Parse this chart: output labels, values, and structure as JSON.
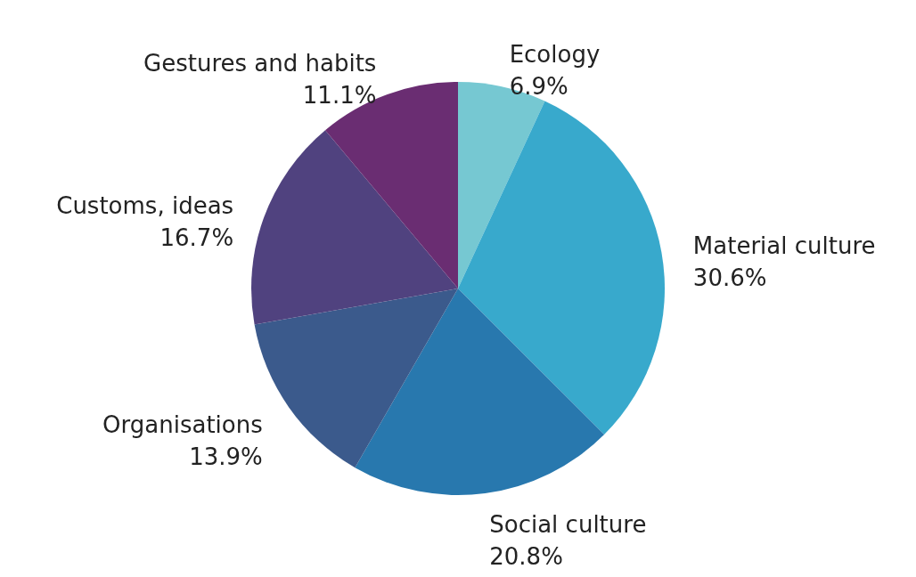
{
  "chart_data": {
    "type": "pie",
    "categories": [
      "Ecology",
      "Material culture",
      "Social culture",
      "Organisations",
      "Customs, ideas",
      "Gestures and habits"
    ],
    "values": [
      6.9,
      30.6,
      20.8,
      13.9,
      16.7,
      11.1
    ],
    "colors": [
      "#76c8d2",
      "#38a9cc",
      "#2878ae",
      "#3b5a8c",
      "#50427f",
      "#6a2d72"
    ],
    "value_labels": [
      "6.9%",
      "30.6%",
      "20.8%",
      "13.9%",
      "16.7%",
      "11.1%"
    ]
  }
}
